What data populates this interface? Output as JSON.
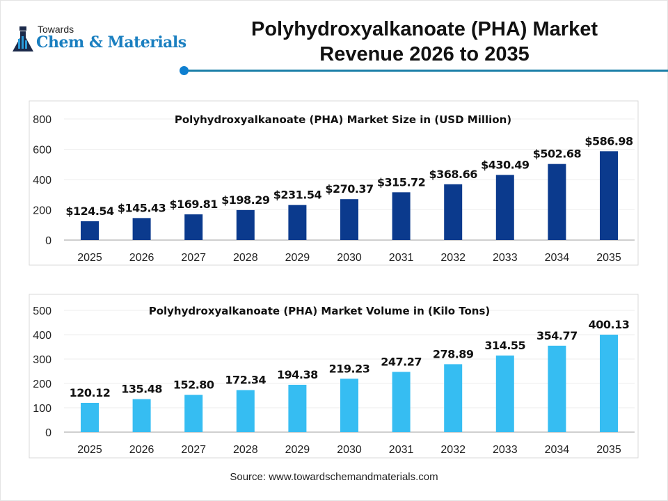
{
  "header": {
    "logo_top": "Towards",
    "logo_main": "Chem & Materials",
    "title_line1": "Polyhydroxyalkanoate (PHA) Market",
    "title_line2": "Revenue 2026 to 2035"
  },
  "source": "Source: www.towardschemandmaterials.com",
  "colors": {
    "revenue_bar": "#0b3a8d",
    "volume_bar": "#36bdf2",
    "accent_line": "#1b7fa8"
  },
  "chart_data": [
    {
      "type": "bar",
      "title": "Polyhydroxyalkanoate (PHA) Market  Size in (USD Million)",
      "categories": [
        "2025",
        "2026",
        "2027",
        "2028",
        "2029",
        "2030",
        "2031",
        "2032",
        "2033",
        "2034",
        "2035"
      ],
      "values": [
        124.54,
        145.43,
        169.81,
        198.29,
        231.54,
        270.37,
        315.72,
        368.66,
        430.49,
        502.68,
        586.98
      ],
      "labels": [
        "$124.54",
        "$145.43",
        "$169.81",
        "$198.29",
        "$231.54",
        "$270.37",
        "$315.72",
        "$368.66",
        "$430.49",
        "$502.68",
        "$586.98"
      ],
      "ylim": [
        0,
        800
      ],
      "yticks": [
        "0",
        "200",
        "400",
        "600",
        "800"
      ],
      "grid": true
    },
    {
      "type": "bar",
      "title": "Polyhydroxyalkanoate (PHA) Market Volume in (Kilo Tons)",
      "categories": [
        "2025",
        "2026",
        "2027",
        "2028",
        "2029",
        "2030",
        "2031",
        "2032",
        "2033",
        "2034",
        "2035"
      ],
      "values": [
        120.12,
        135.48,
        152.8,
        172.34,
        194.38,
        219.23,
        247.27,
        278.89,
        314.55,
        354.77,
        400.13
      ],
      "labels": [
        "120.12",
        "135.48",
        "152.80",
        "172.34",
        "194.38",
        "219.23",
        "247.27",
        "278.89",
        "314.55",
        "354.77",
        "400.13"
      ],
      "ylim": [
        0,
        500
      ],
      "yticks": [
        "0",
        "100",
        "200",
        "300",
        "400",
        "500"
      ],
      "grid": true
    }
  ]
}
